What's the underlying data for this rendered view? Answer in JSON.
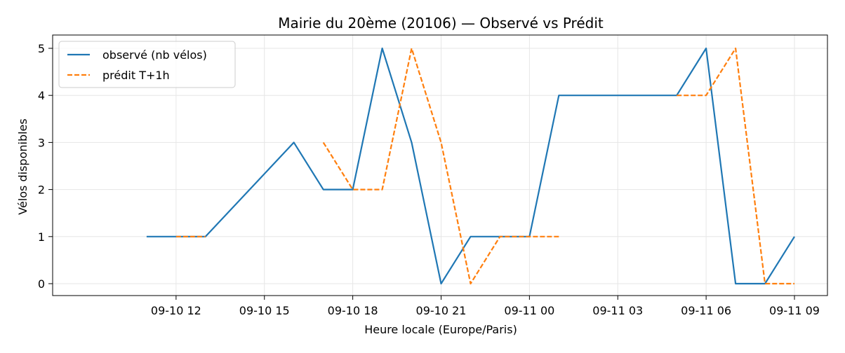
{
  "chart_data": {
    "type": "line",
    "title": "Mairie du 20ème (20106) — Observé vs Prédit",
    "xlabel": "Heure locale (Europe/Paris)",
    "ylabel": "Vélos disponibles",
    "x_tick_labels": [
      "09-10 12",
      "09-10 15",
      "09-10 18",
      "09-10 21",
      "09-11 00",
      "09-11 03",
      "09-11 06",
      "09-11 09"
    ],
    "y_tick_labels": [
      "0",
      "1",
      "2",
      "3",
      "4",
      "5"
    ],
    "x_range": [
      "09-10 09:00",
      "09-11 09:00"
    ],
    "ylim": [
      -0.25,
      5.25
    ],
    "grid": true,
    "legend_position": "upper-left",
    "series": [
      {
        "name": "observé (nb vélos)",
        "color": "#1f77b4",
        "style": "solid",
        "points": [
          {
            "x": "09-10 11:00",
            "y": 1
          },
          {
            "x": "09-10 12:00",
            "y": 1
          },
          {
            "x": "09-10 13:00",
            "y": 1
          },
          {
            "x": "09-10 16:00",
            "y": 3
          },
          {
            "x": "09-10 17:00",
            "y": 2
          },
          {
            "x": "09-10 18:00",
            "y": 2
          },
          {
            "x": "09-10 19:00",
            "y": 5
          },
          {
            "x": "09-10 20:00",
            "y": 3
          },
          {
            "x": "09-10 21:00",
            "y": 0
          },
          {
            "x": "09-10 22:00",
            "y": 1
          },
          {
            "x": "09-10 23:00",
            "y": 1
          },
          {
            "x": "09-11 00:00",
            "y": 1
          },
          {
            "x": "09-11 01:00",
            "y": 4
          },
          {
            "x": "09-11 05:00",
            "y": 4
          },
          {
            "x": "09-11 06:00",
            "y": 5
          },
          {
            "x": "09-11 07:00",
            "y": 0
          },
          {
            "x": "09-11 08:00",
            "y": 0
          },
          {
            "x": "09-11 09:00",
            "y": 1
          }
        ]
      },
      {
        "name": "prédit T+1h",
        "color": "#ff7f0e",
        "style": "dashed",
        "segments": [
          [
            {
              "x": "09-10 12:00",
              "y": 1
            },
            {
              "x": "09-10 13:00",
              "y": 1
            }
          ],
          [
            {
              "x": "09-10 17:00",
              "y": 3
            },
            {
              "x": "09-10 18:00",
              "y": 2
            },
            {
              "x": "09-10 19:00",
              "y": 2
            },
            {
              "x": "09-10 20:00",
              "y": 5
            },
            {
              "x": "09-10 21:00",
              "y": 3
            },
            {
              "x": "09-10 22:00",
              "y": 0
            },
            {
              "x": "09-10 23:00",
              "y": 1
            },
            {
              "x": "09-11 00:00",
              "y": 1
            },
            {
              "x": "09-11 01:00",
              "y": 1
            }
          ],
          [
            {
              "x": "09-11 05:00",
              "y": 4
            },
            {
              "x": "09-11 06:00",
              "y": 4
            },
            {
              "x": "09-11 07:00",
              "y": 5
            },
            {
              "x": "09-11 08:00",
              "y": 0
            },
            {
              "x": "09-11 09:00",
              "y": 0
            }
          ]
        ]
      }
    ]
  }
}
